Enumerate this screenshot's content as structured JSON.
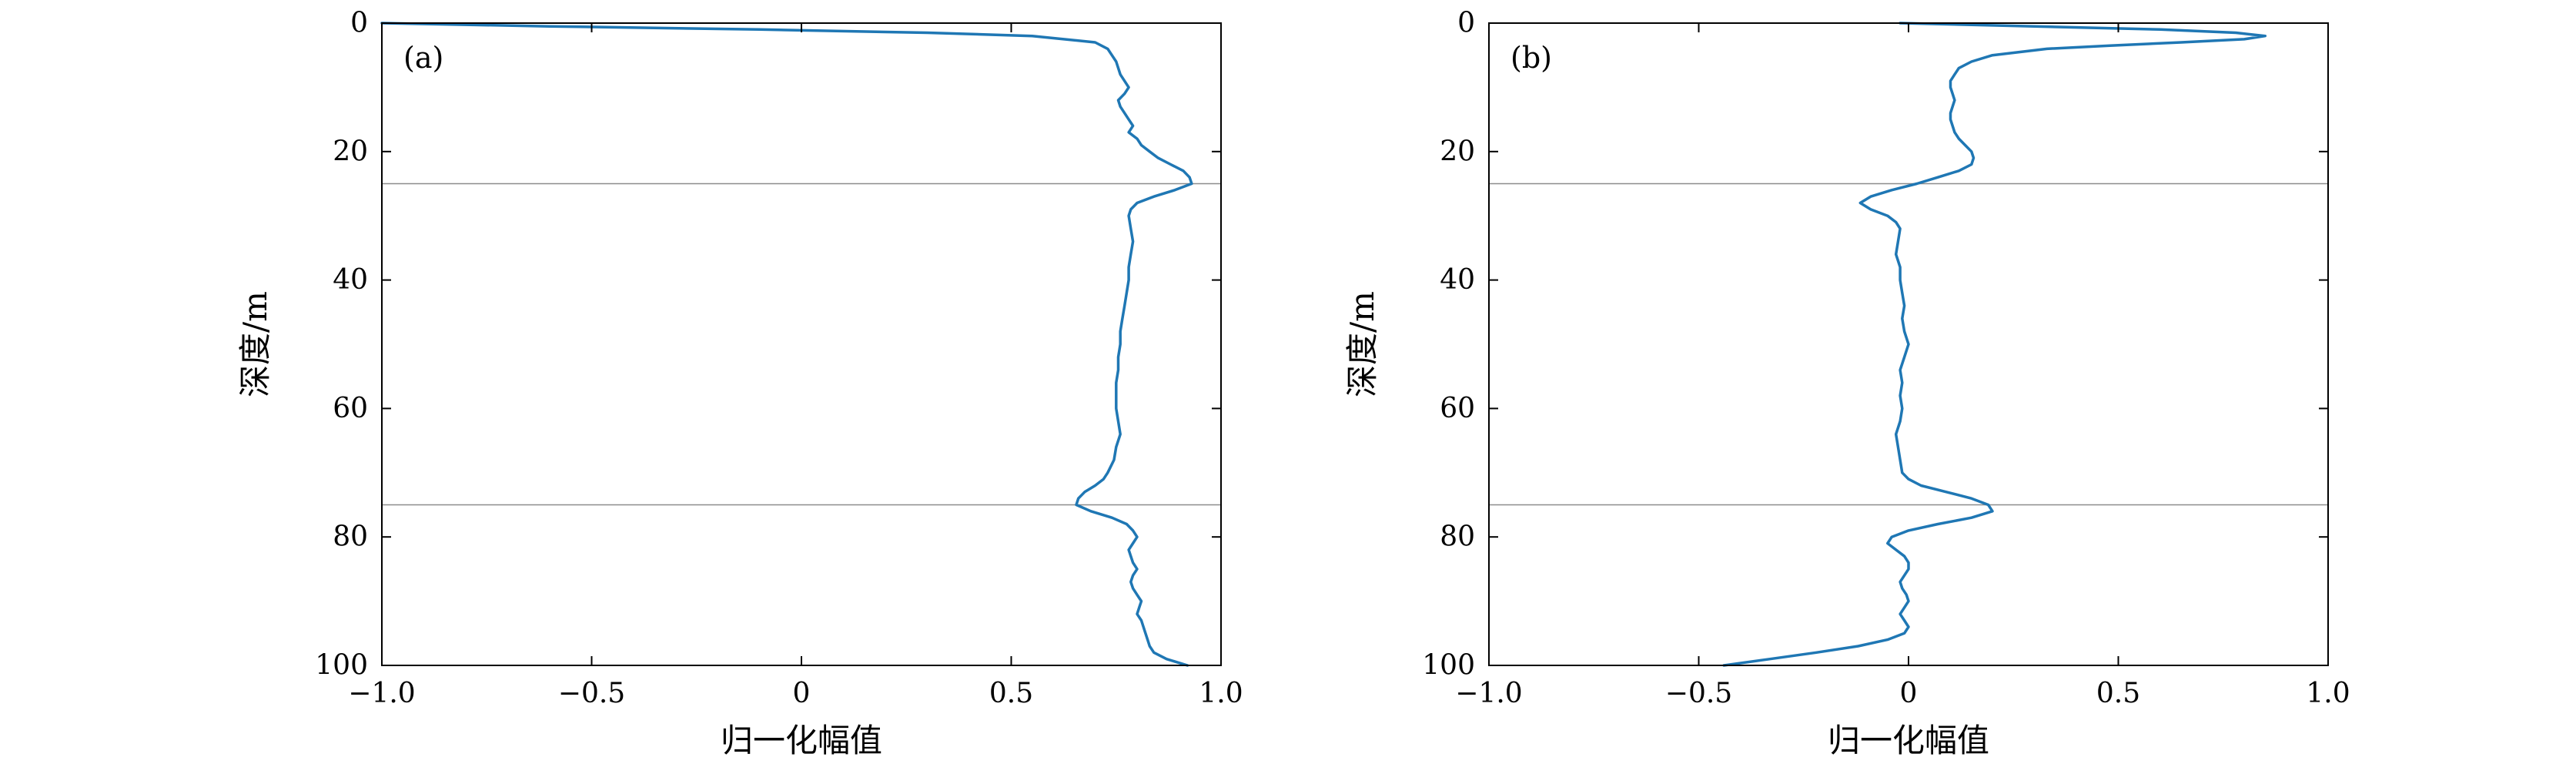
{
  "figure": {
    "background": "#ffffff"
  },
  "chart_data": [
    {
      "type": "line",
      "panel_label": "(a)",
      "title": "",
      "xlabel": "归一化幅值",
      "ylabel": "深度/m",
      "xlim": [
        -1.0,
        1.0
      ],
      "ylim": [
        0,
        100
      ],
      "y_axis_inverted": true,
      "grid": "horizontal-reference-lines-only",
      "legend": "none",
      "x_ticks": [
        -1.0,
        -0.5,
        0,
        0.5,
        1.0
      ],
      "x_tick_labels": [
        "−1.0",
        "−0.5",
        "0",
        "0.5",
        "1.0"
      ],
      "y_ticks": [
        0,
        20,
        40,
        60,
        80,
        100
      ],
      "y_tick_labels": [
        "0",
        "20",
        "40",
        "60",
        "80",
        "100"
      ],
      "reference_depths": [
        25,
        75
      ],
      "line_color": "#1f77b4",
      "grid_color": "#8c8c8c",
      "points": [
        [
          0,
          -1.0
        ],
        [
          0.5,
          -0.6
        ],
        [
          1,
          -0.1
        ],
        [
          1.5,
          0.3
        ],
        [
          2,
          0.55
        ],
        [
          3,
          0.7
        ],
        [
          4,
          0.73
        ],
        [
          5,
          0.74
        ],
        [
          6,
          0.75
        ],
        [
          8,
          0.76
        ],
        [
          10,
          0.78
        ],
        [
          11,
          0.77
        ],
        [
          12,
          0.755
        ],
        [
          13,
          0.76
        ],
        [
          14,
          0.77
        ],
        [
          15,
          0.78
        ],
        [
          16,
          0.79
        ],
        [
          17,
          0.78
        ],
        [
          18,
          0.8
        ],
        [
          19,
          0.81
        ],
        [
          20,
          0.83
        ],
        [
          21,
          0.85
        ],
        [
          22,
          0.88
        ],
        [
          23,
          0.91
        ],
        [
          24,
          0.925
        ],
        [
          25,
          0.93
        ],
        [
          26,
          0.89
        ],
        [
          27,
          0.84
        ],
        [
          28,
          0.8
        ],
        [
          29,
          0.785
        ],
        [
          30,
          0.78
        ],
        [
          32,
          0.785
        ],
        [
          34,
          0.79
        ],
        [
          36,
          0.785
        ],
        [
          38,
          0.78
        ],
        [
          40,
          0.78
        ],
        [
          42,
          0.775
        ],
        [
          44,
          0.77
        ],
        [
          46,
          0.765
        ],
        [
          48,
          0.76
        ],
        [
          50,
          0.76
        ],
        [
          52,
          0.755
        ],
        [
          54,
          0.755
        ],
        [
          56,
          0.75
        ],
        [
          58,
          0.75
        ],
        [
          60,
          0.75
        ],
        [
          62,
          0.755
        ],
        [
          64,
          0.76
        ],
        [
          66,
          0.75
        ],
        [
          68,
          0.745
        ],
        [
          70,
          0.73
        ],
        [
          71,
          0.72
        ],
        [
          72,
          0.7
        ],
        [
          73,
          0.675
        ],
        [
          74,
          0.66
        ],
        [
          75,
          0.655
        ],
        [
          76,
          0.69
        ],
        [
          77,
          0.74
        ],
        [
          78,
          0.775
        ],
        [
          79,
          0.79
        ],
        [
          80,
          0.8
        ],
        [
          81,
          0.79
        ],
        [
          82,
          0.78
        ],
        [
          83,
          0.785
        ],
        [
          84,
          0.79
        ],
        [
          85,
          0.8
        ],
        [
          86,
          0.79
        ],
        [
          87,
          0.785
        ],
        [
          88,
          0.79
        ],
        [
          89,
          0.8
        ],
        [
          90,
          0.81
        ],
        [
          91,
          0.805
        ],
        [
          92,
          0.8
        ],
        [
          93,
          0.81
        ],
        [
          94,
          0.815
        ],
        [
          95,
          0.82
        ],
        [
          96,
          0.825
        ],
        [
          97,
          0.83
        ],
        [
          98,
          0.84
        ],
        [
          99,
          0.87
        ],
        [
          100,
          0.92
        ]
      ]
    },
    {
      "type": "line",
      "panel_label": "(b)",
      "title": "",
      "xlabel": "归一化幅值",
      "ylabel": "深度/m",
      "xlim": [
        -1.0,
        1.0
      ],
      "ylim": [
        0,
        100
      ],
      "y_axis_inverted": true,
      "grid": "horizontal-reference-lines-only",
      "legend": "none",
      "x_ticks": [
        -1.0,
        -0.5,
        0,
        0.5,
        1.0
      ],
      "x_tick_labels": [
        "−1.0",
        "−0.5",
        "0",
        "0.5",
        "1.0"
      ],
      "y_ticks": [
        0,
        20,
        40,
        60,
        80,
        100
      ],
      "y_tick_labels": [
        "0",
        "20",
        "40",
        "60",
        "80",
        "100"
      ],
      "reference_depths": [
        25,
        75
      ],
      "line_color": "#1f77b4",
      "grid_color": "#8c8c8c",
      "points": [
        [
          0,
          -0.02
        ],
        [
          0.5,
          0.3
        ],
        [
          1,
          0.6
        ],
        [
          1.5,
          0.78
        ],
        [
          2,
          0.85
        ],
        [
          2.5,
          0.8
        ],
        [
          3,
          0.65
        ],
        [
          3.5,
          0.48
        ],
        [
          4,
          0.33
        ],
        [
          5,
          0.2
        ],
        [
          6,
          0.15
        ],
        [
          7,
          0.12
        ],
        [
          8,
          0.11
        ],
        [
          9,
          0.1
        ],
        [
          10,
          0.1
        ],
        [
          11,
          0.105
        ],
        [
          12,
          0.11
        ],
        [
          13,
          0.105
        ],
        [
          14,
          0.1
        ],
        [
          15,
          0.1
        ],
        [
          16,
          0.105
        ],
        [
          17,
          0.11
        ],
        [
          18,
          0.12
        ],
        [
          19,
          0.135
        ],
        [
          20,
          0.15
        ],
        [
          21,
          0.155
        ],
        [
          22,
          0.15
        ],
        [
          23,
          0.12
        ],
        [
          24,
          0.07
        ],
        [
          25,
          0.02
        ],
        [
          26,
          -0.04
        ],
        [
          27,
          -0.09
        ],
        [
          28,
          -0.115
        ],
        [
          29,
          -0.09
        ],
        [
          30,
          -0.05
        ],
        [
          31,
          -0.03
        ],
        [
          32,
          -0.02
        ],
        [
          34,
          -0.025
        ],
        [
          36,
          -0.03
        ],
        [
          38,
          -0.02
        ],
        [
          40,
          -0.02
        ],
        [
          42,
          -0.015
        ],
        [
          44,
          -0.01
        ],
        [
          46,
          -0.015
        ],
        [
          48,
          -0.01
        ],
        [
          50,
          0.0
        ],
        [
          52,
          -0.01
        ],
        [
          54,
          -0.02
        ],
        [
          56,
          -0.015
        ],
        [
          58,
          -0.02
        ],
        [
          60,
          -0.015
        ],
        [
          62,
          -0.02
        ],
        [
          64,
          -0.03
        ],
        [
          66,
          -0.025
        ],
        [
          68,
          -0.02
        ],
        [
          70,
          -0.015
        ],
        [
          71,
          0.0
        ],
        [
          72,
          0.03
        ],
        [
          73,
          0.09
        ],
        [
          74,
          0.15
        ],
        [
          75,
          0.19
        ],
        [
          76,
          0.2
        ],
        [
          77,
          0.15
        ],
        [
          78,
          0.07
        ],
        [
          79,
          0.0
        ],
        [
          80,
          -0.04
        ],
        [
          81,
          -0.05
        ],
        [
          82,
          -0.03
        ],
        [
          83,
          -0.01
        ],
        [
          84,
          0.0
        ],
        [
          85,
          0.0
        ],
        [
          86,
          -0.01
        ],
        [
          87,
          -0.02
        ],
        [
          88,
          -0.015
        ],
        [
          89,
          -0.005
        ],
        [
          90,
          0.0
        ],
        [
          91,
          -0.01
        ],
        [
          92,
          -0.02
        ],
        [
          93,
          -0.01
        ],
        [
          94,
          0.0
        ],
        [
          95,
          -0.01
        ],
        [
          96,
          -0.05
        ],
        [
          97,
          -0.12
        ],
        [
          98,
          -0.22
        ],
        [
          99,
          -0.33
        ],
        [
          100,
          -0.44
        ]
      ]
    }
  ]
}
